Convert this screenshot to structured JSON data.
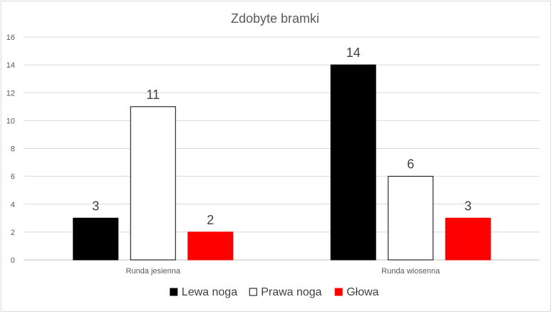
{
  "chart_data": {
    "type": "bar",
    "title": "Zdobyte bramki",
    "xlabel": "",
    "ylabel": "",
    "categories": [
      "Runda jesienna",
      "Runda wiosenna"
    ],
    "series": [
      {
        "name": "Lewa noga",
        "values": [
          3,
          14
        ],
        "color": "#000000"
      },
      {
        "name": "Prawa noga",
        "values": [
          11,
          6
        ],
        "color": "#ffffff"
      },
      {
        "name": "Głowa",
        "values": [
          2,
          3
        ],
        "color": "#ff0000"
      }
    ],
    "ylim": [
      0,
      16
    ],
    "yticks": [
      0,
      2,
      4,
      6,
      8,
      10,
      12,
      14,
      16
    ],
    "grid": true,
    "legend": "bottom",
    "data_labels": true
  }
}
